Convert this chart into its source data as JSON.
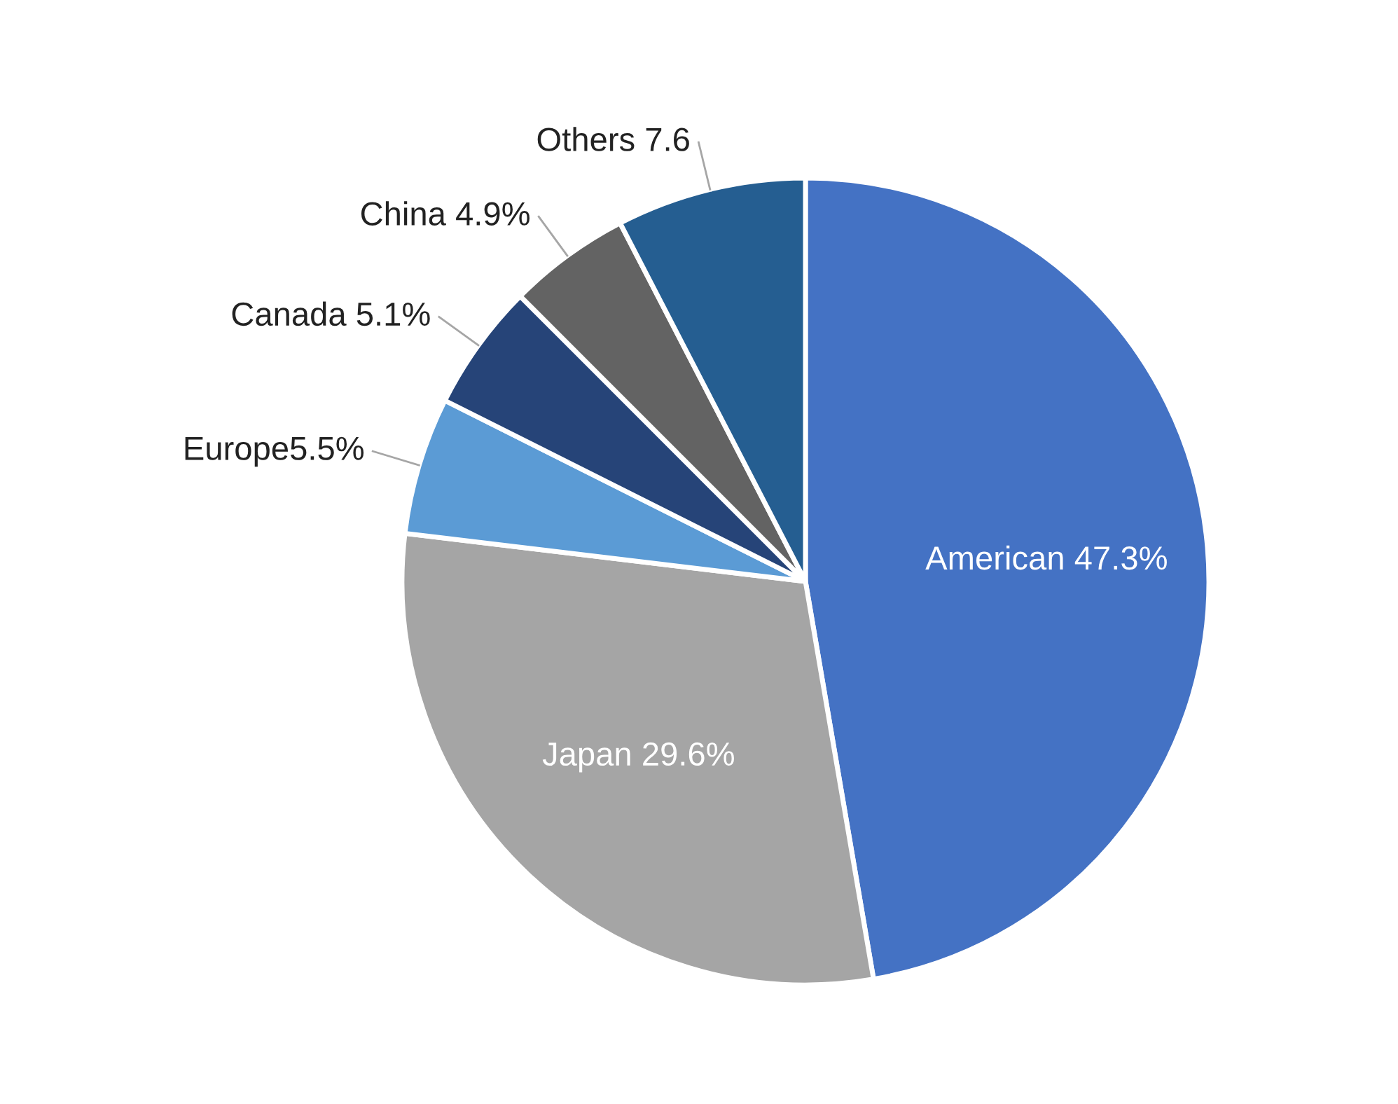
{
  "chart_data": {
    "type": "pie",
    "categories": [
      "American 47.3%",
      "Japan 29.6%",
      "Europe5.5%",
      "Canada 5.1%",
      "China 4.9%",
      "Others 7.6"
    ],
    "values": [
      47.3,
      29.6,
      5.5,
      5.1,
      4.9,
      7.6
    ],
    "colors": [
      "#4472c4",
      "#a5a5a5",
      "#5b9bd5",
      "#264478",
      "#636363",
      "#255e91"
    ],
    "legend": false
  }
}
